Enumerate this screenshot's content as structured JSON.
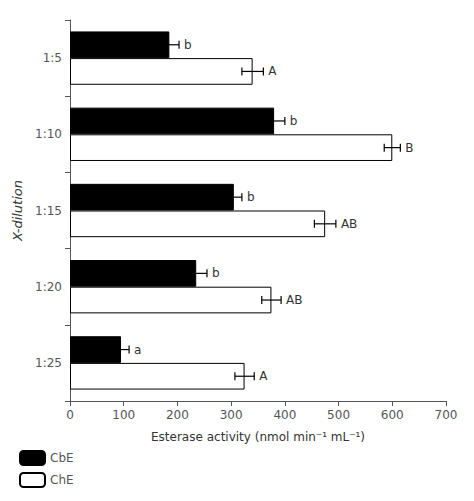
{
  "chart_data": {
    "type": "bar",
    "orientation": "horizontal",
    "xlabel": "Esterase activity (nmol min⁻¹ mL⁻¹)",
    "ylabel": "X-dilution",
    "categories": [
      "1:5",
      "1:10",
      "1:15",
      "1:20",
      "1:25"
    ],
    "series": [
      {
        "name": "CbE",
        "color": "#000000",
        "values": [
          185,
          380,
          305,
          235,
          95
        ],
        "errors": [
          18,
          20,
          15,
          20,
          15
        ],
        "labels": [
          "b",
          "b",
          "b",
          "b",
          "a"
        ]
      },
      {
        "name": "ChE",
        "color": "#ffffff",
        "values": [
          340,
          600,
          475,
          375,
          325
        ],
        "errors": [
          20,
          15,
          20,
          18,
          18
        ],
        "labels": [
          "A",
          "B",
          "AB",
          "AB",
          "A"
        ]
      }
    ],
    "xlim": [
      0,
      700
    ],
    "xticks": [
      0,
      100,
      200,
      300,
      400,
      500,
      600,
      700
    ],
    "grid": false,
    "legend": "lower left"
  }
}
